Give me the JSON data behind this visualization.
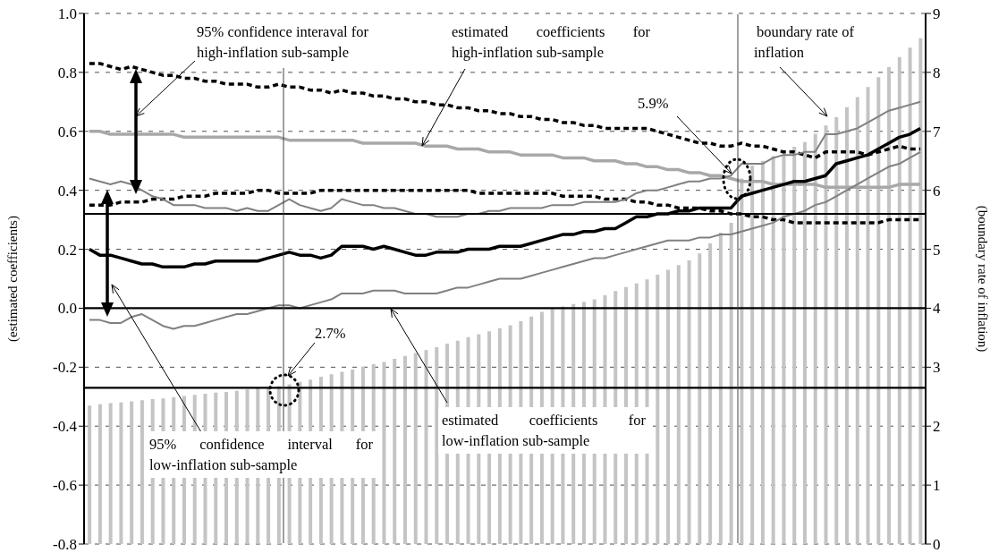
{
  "chart_data": {
    "type": "line",
    "categories": [
      null,
      null,
      null,
      null,
      null,
      null,
      null,
      null,
      null,
      null,
      null,
      null,
      null,
      null,
      null,
      null,
      null,
      null,
      null,
      null,
      null,
      null,
      null,
      null,
      null,
      null,
      null,
      null,
      null,
      null,
      null,
      null,
      null,
      null,
      null,
      null,
      null,
      null,
      null,
      null,
      null,
      null,
      null,
      null,
      null,
      null,
      null,
      null,
      null,
      null,
      null,
      null,
      null,
      null,
      null,
      null,
      null,
      null,
      null,
      null,
      null,
      null,
      null,
      null,
      null,
      null,
      null,
      null,
      null,
      null,
      null,
      null,
      null,
      null,
      null,
      null,
      null,
      null,
      null,
      null
    ],
    "series": [
      {
        "type": "bar",
        "axis": "y2",
        "color": "#c4c4c4",
        "values": [
          2.35,
          2.37,
          2.39,
          2.4,
          2.42,
          2.44,
          2.46,
          2.47,
          2.49,
          2.51,
          2.53,
          2.55,
          2.57,
          2.58,
          2.6,
          2.62,
          2.64,
          2.66,
          2.68,
          2.71,
          2.75,
          2.79,
          2.84,
          2.88,
          2.92,
          2.96,
          3.01,
          3.05,
          3.09,
          3.14,
          3.19,
          3.24,
          3.29,
          3.34,
          3.4,
          3.45,
          3.51,
          3.56,
          3.61,
          3.66,
          3.71,
          3.78,
          3.86,
          3.94,
          3.99,
          4.03,
          4.07,
          4.11,
          4.15,
          4.22,
          4.29,
          4.36,
          4.42,
          4.49,
          4.57,
          4.65,
          4.73,
          4.81,
          4.93,
          5.1,
          5.28,
          5.45,
          6.2,
          6.42,
          6.5,
          6.58,
          6.66,
          6.74,
          6.82,
          6.96,
          7.1,
          7.24,
          7.41,
          7.58,
          7.75,
          7.92,
          8.09,
          8.26,
          8.42,
          8.58
        ]
      },
      {
        "color": "#000000",
        "line_style": "dashed",
        "values": [
          0.83,
          0.83,
          0.82,
          0.81,
          0.82,
          0.81,
          0.8,
          0.79,
          0.79,
          0.78,
          0.78,
          0.77,
          0.77,
          0.76,
          0.76,
          0.76,
          0.75,
          0.75,
          0.76,
          0.75,
          0.75,
          0.74,
          0.74,
          0.73,
          0.74,
          0.73,
          0.73,
          0.72,
          0.72,
          0.71,
          0.71,
          0.7,
          0.7,
          0.69,
          0.69,
          0.68,
          0.68,
          0.67,
          0.67,
          0.66,
          0.66,
          0.65,
          0.65,
          0.64,
          0.64,
          0.63,
          0.63,
          0.62,
          0.62,
          0.61,
          0.61,
          0.61,
          0.61,
          0.61,
          0.6,
          0.59,
          0.58,
          0.57,
          0.56,
          0.56,
          0.55,
          0.55,
          0.56,
          0.55,
          0.55,
          0.54,
          0.53,
          0.53,
          0.52,
          0.51,
          0.53,
          0.53,
          0.53,
          0.53,
          0.52,
          0.53,
          0.54,
          0.55,
          0.54,
          0.54
        ]
      },
      {
        "color": "#000000",
        "line_style": "dashed",
        "values": [
          0.35,
          0.35,
          0.35,
          0.36,
          0.36,
          0.36,
          0.37,
          0.37,
          0.37,
          0.38,
          0.38,
          0.38,
          0.39,
          0.39,
          0.39,
          0.39,
          0.4,
          0.4,
          0.39,
          0.39,
          0.39,
          0.39,
          0.4,
          0.4,
          0.4,
          0.4,
          0.4,
          0.4,
          0.4,
          0.4,
          0.4,
          0.4,
          0.4,
          0.4,
          0.4,
          0.4,
          0.4,
          0.39,
          0.39,
          0.39,
          0.39,
          0.39,
          0.39,
          0.39,
          0.39,
          0.38,
          0.38,
          0.38,
          0.38,
          0.37,
          0.37,
          0.37,
          0.36,
          0.36,
          0.35,
          0.35,
          0.34,
          0.34,
          0.34,
          0.33,
          0.33,
          0.32,
          0.32,
          0.31,
          0.31,
          0.3,
          0.3,
          0.29,
          0.29,
          0.29,
          0.29,
          0.29,
          0.29,
          0.29,
          0.29,
          0.29,
          0.3,
          0.3,
          0.3,
          0.3
        ]
      },
      {
        "color": "#a8a8a8",
        "line_style": "solid",
        "values": [
          0.6,
          0.6,
          0.59,
          0.59,
          0.59,
          0.59,
          0.59,
          0.59,
          0.59,
          0.58,
          0.58,
          0.58,
          0.58,
          0.58,
          0.58,
          0.58,
          0.58,
          0.58,
          0.58,
          0.57,
          0.57,
          0.57,
          0.57,
          0.57,
          0.57,
          0.57,
          0.56,
          0.56,
          0.56,
          0.56,
          0.56,
          0.56,
          0.55,
          0.55,
          0.55,
          0.54,
          0.54,
          0.54,
          0.53,
          0.53,
          0.53,
          0.52,
          0.52,
          0.52,
          0.52,
          0.51,
          0.51,
          0.51,
          0.5,
          0.5,
          0.5,
          0.49,
          0.49,
          0.48,
          0.48,
          0.47,
          0.47,
          0.46,
          0.46,
          0.45,
          0.45,
          0.44,
          0.43,
          0.43,
          0.43,
          0.42,
          0.42,
          0.42,
          0.42,
          0.42,
          0.41,
          0.41,
          0.41,
          0.41,
          0.41,
          0.41,
          0.41,
          0.42,
          0.42,
          0.42
        ]
      },
      {
        "color": "#808080",
        "line_style": "solid",
        "values": [
          0.44,
          0.43,
          0.42,
          0.43,
          0.42,
          0.4,
          0.38,
          0.37,
          0.35,
          0.35,
          0.35,
          0.34,
          0.34,
          0.34,
          0.33,
          0.34,
          0.33,
          0.33,
          0.35,
          0.37,
          0.35,
          0.34,
          0.33,
          0.34,
          0.37,
          0.36,
          0.35,
          0.35,
          0.34,
          0.34,
          0.33,
          0.32,
          0.32,
          0.31,
          0.31,
          0.31,
          0.32,
          0.32,
          0.33,
          0.33,
          0.34,
          0.34,
          0.34,
          0.34,
          0.35,
          0.35,
          0.35,
          0.36,
          0.36,
          0.36,
          0.36,
          0.37,
          0.39,
          0.4,
          0.4,
          0.41,
          0.42,
          0.43,
          0.43,
          0.44,
          0.44,
          0.45,
          0.49,
          0.49,
          0.49,
          0.51,
          0.52,
          0.52,
          0.53,
          0.53,
          0.59,
          0.59,
          0.6,
          0.61,
          0.63,
          0.65,
          0.67,
          0.68,
          0.69,
          0.7
        ]
      },
      {
        "color": "#808080",
        "line_style": "solid",
        "values": [
          -0.04,
          -0.04,
          -0.05,
          -0.05,
          -0.03,
          -0.02,
          -0.04,
          -0.06,
          -0.07,
          -0.06,
          -0.06,
          -0.05,
          -0.04,
          -0.03,
          -0.02,
          -0.02,
          -0.01,
          0.0,
          0.01,
          0.01,
          0.0,
          0.01,
          0.02,
          0.03,
          0.05,
          0.05,
          0.05,
          0.06,
          0.06,
          0.06,
          0.05,
          0.05,
          0.05,
          0.05,
          0.06,
          0.07,
          0.07,
          0.08,
          0.09,
          0.1,
          0.1,
          0.1,
          0.11,
          0.12,
          0.13,
          0.14,
          0.15,
          0.16,
          0.17,
          0.17,
          0.18,
          0.19,
          0.2,
          0.21,
          0.22,
          0.23,
          0.23,
          0.23,
          0.24,
          0.24,
          0.25,
          0.25,
          0.26,
          0.27,
          0.28,
          0.29,
          0.31,
          0.32,
          0.33,
          0.35,
          0.36,
          0.38,
          0.4,
          0.42,
          0.44,
          0.46,
          0.48,
          0.49,
          0.51,
          0.53
        ]
      },
      {
        "color": "#000000",
        "line_style": "solid",
        "values": [
          0.2,
          0.18,
          0.18,
          0.17,
          0.16,
          0.15,
          0.15,
          0.14,
          0.14,
          0.14,
          0.15,
          0.15,
          0.16,
          0.16,
          0.16,
          0.16,
          0.16,
          0.17,
          0.18,
          0.19,
          0.18,
          0.18,
          0.17,
          0.18,
          0.21,
          0.21,
          0.21,
          0.2,
          0.21,
          0.2,
          0.19,
          0.18,
          0.18,
          0.19,
          0.19,
          0.19,
          0.2,
          0.2,
          0.2,
          0.21,
          0.21,
          0.21,
          0.22,
          0.23,
          0.24,
          0.25,
          0.25,
          0.26,
          0.26,
          0.27,
          0.27,
          0.29,
          0.31,
          0.31,
          0.32,
          0.32,
          0.33,
          0.33,
          0.34,
          0.34,
          0.34,
          0.34,
          0.38,
          0.39,
          0.4,
          0.41,
          0.42,
          0.43,
          0.43,
          0.44,
          0.45,
          0.49,
          0.5,
          0.51,
          0.52,
          0.54,
          0.56,
          0.58,
          0.59,
          0.61
        ]
      }
    ],
    "ylim": [
      -0.8,
      1.0
    ],
    "yticks": [
      {
        "value": -0.8,
        "label": "-0.8"
      },
      {
        "value": -0.6,
        "label": "-0.6"
      },
      {
        "value": -0.4,
        "label": "-0.4"
      },
      {
        "value": -0.2,
        "label": "-0.2"
      },
      {
        "value": 0,
        "label": "0.0"
      },
      {
        "value": 0.2,
        "label": "0.2"
      },
      {
        "value": 0.4,
        "label": "0.4"
      },
      {
        "value": 0.6,
        "label": "0.6"
      },
      {
        "value": 0.8,
        "label": "0.8"
      },
      {
        "value": 1,
        "label": "1.0"
      }
    ],
    "y2lim": [
      0,
      9
    ],
    "y2ticks": [
      0,
      1,
      2,
      3,
      4,
      5,
      6,
      7,
      8,
      9
    ],
    "ylabel": "(estimated coefficients)",
    "y2label": "(boundary rate of inflation)",
    "grid": "y",
    "marker": "none",
    "ref_lines": [
      {
        "axis": "y",
        "value": 0.32,
        "color": "#000000"
      },
      {
        "axis": "y",
        "value": 0,
        "color": "#000000"
      },
      {
        "axis": "y",
        "value": -0.27,
        "color": "#000000"
      }
    ],
    "annotations": [
      "95% confidence interaval for high-inflation sub-sample",
      "estimated coefficients for high-inflation sub-sample",
      "boundary rate of inflation",
      "5.9%",
      "2.7%",
      "95% confidence interval for low-inflation sub-sample",
      "estimated coefficients for low-inflation sub-sample"
    ]
  }
}
